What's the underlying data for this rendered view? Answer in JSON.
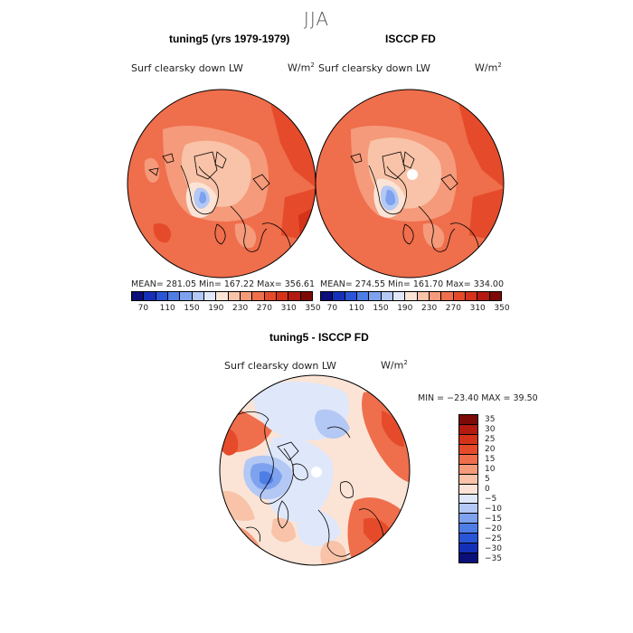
{
  "season_title": "JJA",
  "panel_left": {
    "title": "tuning5 (yrs 1979-1979)",
    "variable": "Surf clearsky down LW",
    "units": "W/m",
    "units_sup": "2",
    "stats": "MEAN= 281.05   Min= 167.22   Max= 356.61"
  },
  "panel_right": {
    "title": "ISCCP FD",
    "variable": "Surf clearsky down LW",
    "units": "W/m",
    "units_sup": "2",
    "stats": "MEAN= 274.55   Min= 161.70   Max= 334.00"
  },
  "panel_diff": {
    "title": "tuning5 - ISCCP FD",
    "variable": "Surf clearsky down LW",
    "units": "W/m",
    "units_sup": "2",
    "stats": "MIN = −23.40  MAX =   39.50"
  },
  "colorbar_abs": {
    "ticks": [
      "70",
      "110",
      "150",
      "190",
      "230",
      "270",
      "310",
      "350"
    ],
    "colors": [
      "#0a0f7a",
      "#1530b8",
      "#2a55d6",
      "#4f7de6",
      "#7ea2ee",
      "#b3c8f4",
      "#dfe7fa",
      "#fbe4d6",
      "#f8c3a8",
      "#f59a7a",
      "#ef6e4c",
      "#e54b2a",
      "#d5321a",
      "#b31a10",
      "#7d0a06"
    ]
  },
  "colorbar_diff": {
    "ticks": [
      "35",
      "30",
      "25",
      "20",
      "15",
      "10",
      "5",
      "0",
      "−5",
      "−10",
      "−15",
      "−20",
      "−25",
      "−30",
      "−35"
    ],
    "colors": [
      "#7d0a06",
      "#b31a10",
      "#d5321a",
      "#e54b2a",
      "#ef6e4c",
      "#f59a7a",
      "#f8c3a8",
      "#fbe4d6",
      "#dfe7fa",
      "#b3c8f4",
      "#7ea2ee",
      "#4f7de6",
      "#2a55d6",
      "#1530b8",
      "#0a0f7a"
    ]
  }
}
